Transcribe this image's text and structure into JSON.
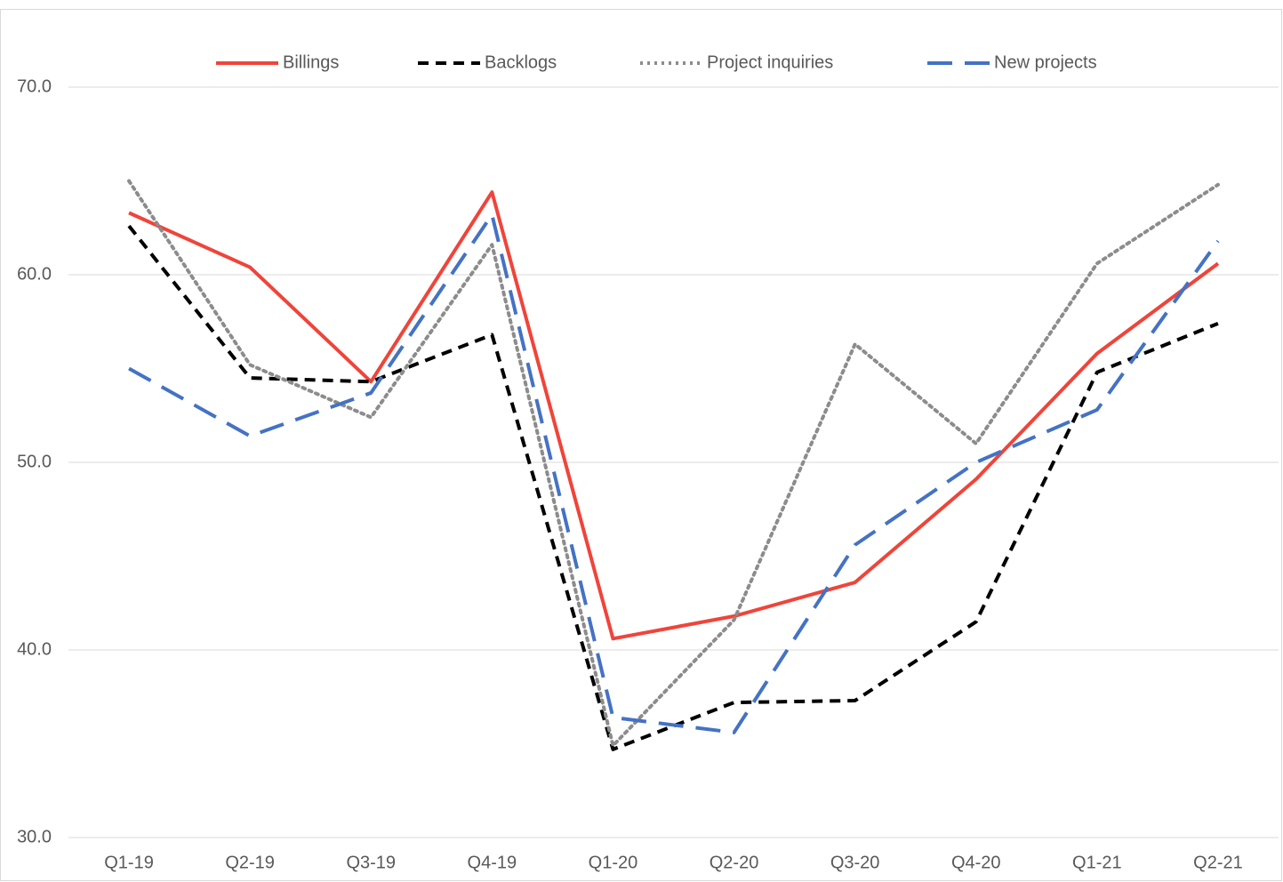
{
  "chart_data": {
    "type": "line",
    "categories": [
      "Q1-19",
      "Q2-19",
      "Q3-19",
      "Q4-19",
      "Q1-20",
      "Q2-20",
      "Q3-20",
      "Q4-20",
      "Q1-21",
      "Q2-21"
    ],
    "series": [
      {
        "name": "Billings",
        "color": "#f0443a",
        "dash": "solid",
        "values": [
          63.3,
          60.4,
          54.3,
          64.4,
          40.6,
          41.8,
          43.6,
          49.1,
          55.8,
          60.6
        ]
      },
      {
        "name": "Backlogs",
        "color": "#000000",
        "dash": "dash",
        "values": [
          62.6,
          54.5,
          54.3,
          56.8,
          34.7,
          37.2,
          37.3,
          41.5,
          54.8,
          57.4
        ]
      },
      {
        "name": "Project inquiries",
        "color": "#8c8c8c",
        "dash": "dot",
        "values": [
          65.0,
          55.2,
          52.4,
          61.6,
          34.9,
          41.6,
          56.3,
          51.0,
          60.6,
          64.8
        ]
      },
      {
        "name": "New projects",
        "color": "#4472c4",
        "dash": "longdash",
        "values": [
          55.0,
          51.4,
          53.7,
          63.2,
          36.4,
          35.6,
          45.6,
          50.0,
          52.8,
          61.8
        ]
      }
    ],
    "ylim": [
      30,
      70
    ],
    "yticks": [
      {
        "value": 30,
        "label": "30.0"
      },
      {
        "value": 40,
        "label": "40.0"
      },
      {
        "value": 50,
        "label": "50.0"
      },
      {
        "value": 60,
        "label": "60.0"
      },
      {
        "value": 70,
        "label": "70.0"
      }
    ],
    "grid": true,
    "legend": "top"
  }
}
